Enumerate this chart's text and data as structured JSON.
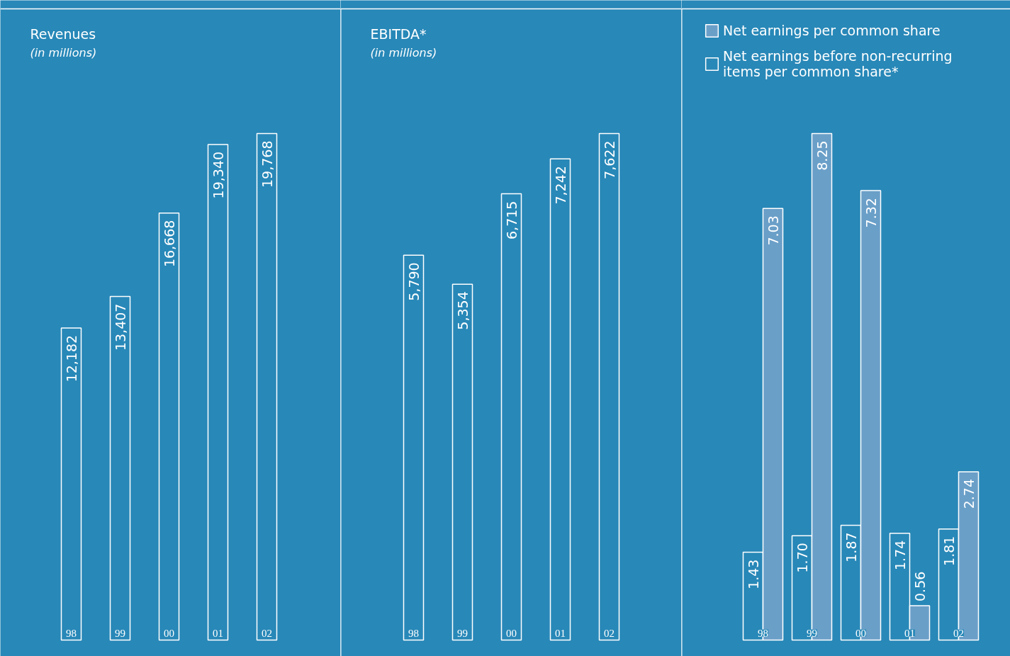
{
  "chart_data": [
    {
      "type": "bar",
      "title": "Revenues",
      "subtitle": "(in millions)",
      "categories": [
        "98",
        "99",
        "00",
        "01",
        "02"
      ],
      "values": [
        12182,
        13407,
        16668,
        19340,
        19768
      ],
      "value_labels": [
        "12,182",
        "13,407",
        "16,668",
        "19,340",
        "19,768"
      ],
      "color": "#2888b8"
    },
    {
      "type": "bar",
      "title": "EBITDA*",
      "subtitle": "(in millions)",
      "categories": [
        "98",
        "99",
        "00",
        "01",
        "02"
      ],
      "values": [
        5790,
        5354,
        6715,
        7242,
        7622
      ],
      "value_labels": [
        "5,790",
        "5,354",
        "6,715",
        "7,242",
        "7,622"
      ],
      "color": "#2888b8"
    },
    {
      "type": "bar",
      "categories": [
        "98",
        "99",
        "00",
        "01",
        "02"
      ],
      "legend": "top left",
      "series": [
        {
          "name": "Net earnings before non-recurring items per common share*",
          "color": "#2888b8",
          "values": [
            1.43,
            1.7,
            1.87,
            1.74,
            1.81
          ],
          "value_labels": [
            "1.43",
            "1.70",
            "1.87",
            "1.74",
            "1.81"
          ]
        },
        {
          "name": "Net earnings per common share",
          "color": "#6a9fc8",
          "values": [
            7.03,
            8.25,
            7.32,
            0.56,
            2.74
          ],
          "value_labels": [
            "7.03",
            "8.25",
            "7.32",
            "0.56",
            "2.74"
          ]
        }
      ]
    }
  ]
}
